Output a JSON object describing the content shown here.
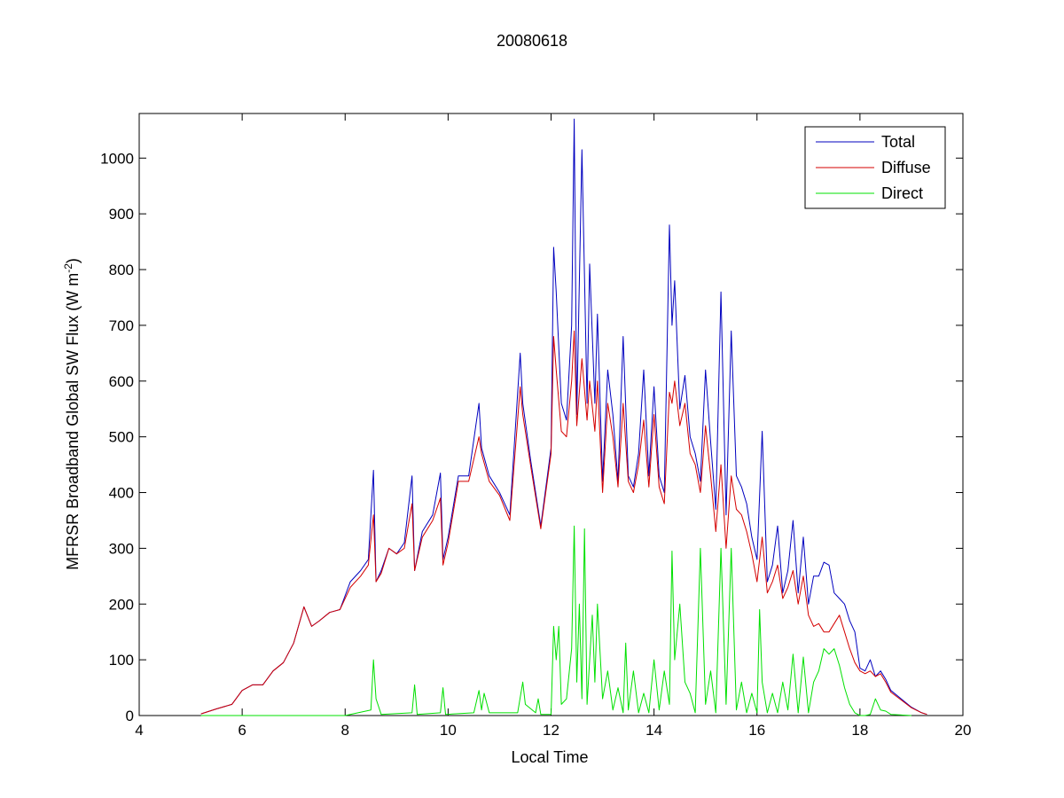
{
  "chart_data": {
    "type": "line",
    "title": "20080618",
    "xlabel": "Local Time",
    "ylabel_main": "MFRSR Broadband Global SW Flux (W m",
    "ylabel_sup": "-2",
    "ylabel_end": ")",
    "xlim": [
      4,
      20
    ],
    "ylim": [
      0,
      1080
    ],
    "xticks": [
      4,
      6,
      8,
      10,
      12,
      14,
      16,
      18,
      20
    ],
    "yticks": [
      0,
      100,
      200,
      300,
      400,
      500,
      600,
      700,
      800,
      900,
      1000
    ],
    "grid": false,
    "legend_position": "top-right",
    "series": [
      {
        "name": "Total",
        "color": "#0000bf",
        "x": [
          5.2,
          5.5,
          5.8,
          6.0,
          6.2,
          6.4,
          6.6,
          6.8,
          7.0,
          7.2,
          7.35,
          7.5,
          7.7,
          7.9,
          8.1,
          8.3,
          8.45,
          8.55,
          8.6,
          8.7,
          8.85,
          9.0,
          9.15,
          9.3,
          9.35,
          9.5,
          9.7,
          9.85,
          9.9,
          10.0,
          10.2,
          10.4,
          10.6,
          10.65,
          10.8,
          11.0,
          11.2,
          11.4,
          11.45,
          11.6,
          11.8,
          12.0,
          12.05,
          12.1,
          12.2,
          12.3,
          12.4,
          12.45,
          12.5,
          12.6,
          12.7,
          12.75,
          12.85,
          12.9,
          13.0,
          13.1,
          13.2,
          13.3,
          13.4,
          13.5,
          13.6,
          13.7,
          13.8,
          13.9,
          14.0,
          14.1,
          14.2,
          14.3,
          14.35,
          14.4,
          14.5,
          14.6,
          14.7,
          14.8,
          14.9,
          15.0,
          15.1,
          15.2,
          15.3,
          15.4,
          15.5,
          15.6,
          15.7,
          15.8,
          15.9,
          16.0,
          16.1,
          16.2,
          16.3,
          16.4,
          16.5,
          16.6,
          16.7,
          16.8,
          16.9,
          17.0,
          17.1,
          17.2,
          17.3,
          17.4,
          17.5,
          17.6,
          17.7,
          17.8,
          17.9,
          18.0,
          18.1,
          18.2,
          18.3,
          18.4,
          18.5,
          18.6,
          18.8,
          19.0,
          19.2,
          19.3
        ],
        "values": [
          3,
          12,
          20,
          45,
          55,
          55,
          80,
          95,
          130,
          195,
          160,
          170,
          185,
          190,
          240,
          260,
          280,
          440,
          240,
          260,
          300,
          290,
          310,
          430,
          260,
          330,
          360,
          435,
          280,
          320,
          430,
          430,
          560,
          480,
          430,
          400,
          360,
          650,
          560,
          460,
          340,
          480,
          840,
          760,
          560,
          530,
          700,
          1070,
          540,
          1015,
          560,
          810,
          560,
          720,
          420,
          620,
          540,
          420,
          680,
          430,
          410,
          470,
          620,
          430,
          590,
          430,
          400,
          880,
          700,
          780,
          550,
          610,
          500,
          470,
          420,
          620,
          490,
          370,
          760,
          360,
          690,
          430,
          410,
          380,
          320,
          280,
          510,
          240,
          270,
          340,
          220,
          260,
          350,
          220,
          320,
          200,
          250,
          250,
          275,
          270,
          220,
          210,
          200,
          170,
          150,
          85,
          80,
          100,
          70,
          80,
          65,
          45,
          30,
          15,
          5,
          2
        ]
      },
      {
        "name": "Diffuse",
        "color": "#d40000",
        "x": [
          5.2,
          5.5,
          5.8,
          6.0,
          6.2,
          6.4,
          6.6,
          6.8,
          7.0,
          7.2,
          7.35,
          7.5,
          7.7,
          7.9,
          8.1,
          8.3,
          8.45,
          8.55,
          8.6,
          8.7,
          8.85,
          9.0,
          9.15,
          9.3,
          9.35,
          9.5,
          9.7,
          9.85,
          9.9,
          10.0,
          10.2,
          10.4,
          10.6,
          10.65,
          10.8,
          11.0,
          11.2,
          11.4,
          11.45,
          11.6,
          11.8,
          12.0,
          12.05,
          12.1,
          12.2,
          12.3,
          12.4,
          12.45,
          12.5,
          12.6,
          12.7,
          12.75,
          12.85,
          12.9,
          13.0,
          13.1,
          13.2,
          13.3,
          13.4,
          13.5,
          13.6,
          13.7,
          13.8,
          13.9,
          14.0,
          14.1,
          14.2,
          14.3,
          14.35,
          14.4,
          14.5,
          14.6,
          14.7,
          14.8,
          14.9,
          15.0,
          15.1,
          15.2,
          15.3,
          15.4,
          15.5,
          15.6,
          15.7,
          15.8,
          15.9,
          16.0,
          16.1,
          16.2,
          16.3,
          16.4,
          16.5,
          16.6,
          16.7,
          16.8,
          16.9,
          17.0,
          17.1,
          17.2,
          17.3,
          17.4,
          17.5,
          17.6,
          17.7,
          17.8,
          17.9,
          18.0,
          18.1,
          18.2,
          18.3,
          18.4,
          18.5,
          18.6,
          18.8,
          19.0,
          19.2,
          19.3
        ],
        "values": [
          3,
          12,
          20,
          45,
          55,
          55,
          80,
          95,
          130,
          195,
          160,
          170,
          185,
          190,
          230,
          250,
          270,
          360,
          240,
          255,
          300,
          290,
          300,
          380,
          260,
          320,
          350,
          390,
          270,
          310,
          420,
          420,
          500,
          470,
          420,
          395,
          350,
          590,
          540,
          450,
          335,
          470,
          680,
          620,
          510,
          500,
          600,
          690,
          520,
          640,
          530,
          600,
          510,
          600,
          400,
          560,
          500,
          410,
          560,
          420,
          400,
          450,
          530,
          410,
          540,
          410,
          380,
          580,
          560,
          600,
          520,
          560,
          470,
          450,
          400,
          520,
          430,
          330,
          450,
          300,
          430,
          370,
          360,
          330,
          290,
          240,
          320,
          220,
          240,
          270,
          210,
          230,
          260,
          200,
          250,
          180,
          160,
          165,
          150,
          150,
          165,
          180,
          150,
          120,
          95,
          80,
          75,
          80,
          70,
          75,
          60,
          42,
          28,
          14,
          5,
          2
        ]
      },
      {
        "name": "Direct",
        "color": "#00e000",
        "x": [
          5.2,
          8.0,
          8.5,
          8.55,
          8.6,
          8.7,
          9.3,
          9.35,
          9.4,
          9.85,
          9.9,
          9.95,
          10.5,
          10.6,
          10.65,
          10.7,
          10.8,
          11.35,
          11.45,
          11.5,
          11.7,
          11.75,
          11.8,
          12.0,
          12.05,
          12.1,
          12.15,
          12.2,
          12.3,
          12.4,
          12.45,
          12.5,
          12.55,
          12.6,
          12.65,
          12.7,
          12.8,
          12.85,
          12.9,
          13.0,
          13.1,
          13.2,
          13.3,
          13.4,
          13.45,
          13.5,
          13.6,
          13.7,
          13.8,
          13.9,
          14.0,
          14.1,
          14.2,
          14.3,
          14.35,
          14.4,
          14.5,
          14.6,
          14.7,
          14.8,
          14.9,
          15.0,
          15.1,
          15.2,
          15.3,
          15.4,
          15.5,
          15.6,
          15.7,
          15.8,
          15.9,
          16.0,
          16.05,
          16.1,
          16.2,
          16.3,
          16.4,
          16.5,
          16.6,
          16.7,
          16.8,
          16.9,
          17.0,
          17.1,
          17.2,
          17.3,
          17.4,
          17.5,
          17.6,
          17.7,
          17.8,
          17.9,
          18.0,
          18.1,
          18.2,
          18.3,
          18.4,
          18.5,
          18.6,
          19.0
        ],
        "values": [
          0,
          0,
          10,
          100,
          30,
          2,
          5,
          55,
          2,
          5,
          50,
          2,
          5,
          45,
          10,
          40,
          5,
          5,
          60,
          20,
          5,
          30,
          2,
          2,
          160,
          100,
          160,
          20,
          30,
          120,
          340,
          60,
          200,
          30,
          335,
          20,
          180,
          60,
          200,
          30,
          80,
          10,
          50,
          5,
          130,
          10,
          80,
          5,
          40,
          5,
          100,
          10,
          80,
          20,
          295,
          100,
          200,
          60,
          40,
          5,
          300,
          20,
          80,
          5,
          300,
          20,
          300,
          10,
          60,
          5,
          40,
          5,
          190,
          60,
          5,
          40,
          5,
          60,
          10,
          110,
          5,
          105,
          5,
          60,
          80,
          120,
          110,
          120,
          90,
          50,
          20,
          5,
          0,
          0,
          2,
          30,
          10,
          8,
          2,
          0
        ]
      }
    ]
  }
}
